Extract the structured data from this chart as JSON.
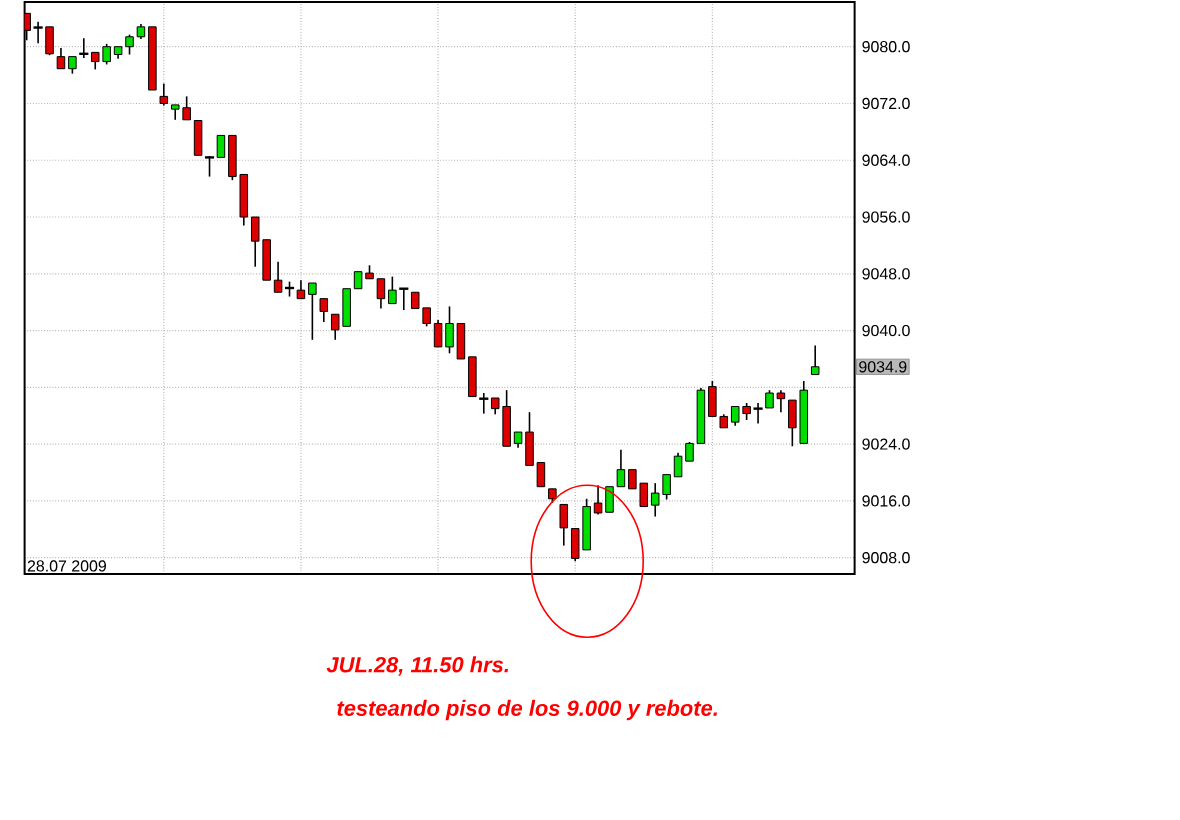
{
  "chart_data": {
    "type": "candlestick",
    "categories": [
      null,
      null,
      null,
      null,
      null,
      null,
      null,
      null,
      null,
      null,
      null,
      null,
      null,
      null,
      null,
      null,
      null,
      null,
      null,
      null,
      null,
      null,
      null,
      null,
      null,
      null,
      null,
      null,
      null,
      null,
      null,
      null,
      null,
      null,
      null,
      null,
      null,
      null,
      null,
      null,
      null,
      null,
      null,
      null,
      null,
      null,
      null,
      null,
      null,
      null,
      null,
      null,
      null,
      null,
      null,
      null,
      null,
      null,
      null,
      null,
      null,
      null,
      null,
      null,
      null,
      null,
      null,
      null,
      null,
      null
    ],
    "ohlc": [
      [
        9084.7,
        9084.7,
        9080.9,
        9082.3
      ],
      [
        9082.7,
        9083.5,
        9080.5,
        9082.7
      ],
      [
        9082.8,
        9082.8,
        9078.8,
        9079.0
      ],
      [
        9078.6,
        9079.8,
        9076.9,
        9076.9
      ],
      [
        9076.9,
        9078.6,
        9076.2,
        9078.6
      ],
      [
        9079.0,
        9081.2,
        9078.4,
        9079.0
      ],
      [
        9079.2,
        9079.2,
        9076.8,
        9077.9
      ],
      [
        9077.9,
        9080.4,
        9077.5,
        9080.0
      ],
      [
        9078.9,
        9080.0,
        9078.3,
        9080.0
      ],
      [
        9080.0,
        9081.7,
        9078.9,
        9081.4
      ],
      [
        9081.4,
        9083.2,
        9081.1,
        9082.8
      ],
      [
        9082.8,
        9082.8,
        9073.9,
        9073.9
      ],
      [
        9073.0,
        9074.8,
        9071.7,
        9072.0
      ],
      [
        9071.2,
        9071.8,
        9069.7,
        9071.8
      ],
      [
        9071.4,
        9073.0,
        9069.7,
        9069.7
      ],
      [
        9069.6,
        9069.6,
        9064.7,
        9064.7
      ],
      [
        9064.4,
        9064.6,
        9061.7,
        9064.4
      ],
      [
        9064.4,
        9067.5,
        9064.4,
        9067.5
      ],
      [
        9067.5,
        9067.5,
        9061.2,
        9061.7
      ],
      [
        9062.0,
        9062.0,
        9054.8,
        9056.0
      ],
      [
        9056.0,
        9056.0,
        9049.0,
        9052.6
      ],
      [
        9052.8,
        9052.8,
        9047.1,
        9047.1
      ],
      [
        9047.1,
        9049.7,
        9045.4,
        9045.4
      ],
      [
        9046.0,
        9046.9,
        9044.8,
        9046.0
      ],
      [
        9045.7,
        9047.1,
        9044.5,
        9044.5
      ],
      [
        9045.1,
        9046.7,
        9038.7,
        9046.7
      ],
      [
        9044.5,
        9044.5,
        9041.2,
        9042.7
      ],
      [
        9042.3,
        9042.3,
        9038.7,
        9040.1
      ],
      [
        9040.6,
        9045.9,
        9040.6,
        9045.9
      ],
      [
        9045.9,
        9048.3,
        9045.9,
        9048.3
      ],
      [
        9048.1,
        9049.2,
        9047.3,
        9047.3
      ],
      [
        9047.3,
        9047.3,
        9043.1,
        9044.5
      ],
      [
        9043.8,
        9047.6,
        9043.8,
        9045.7
      ],
      [
        9045.9,
        9045.9,
        9042.9,
        9045.9
      ],
      [
        9045.4,
        9045.4,
        9043.1,
        9043.1
      ],
      [
        9043.2,
        9043.2,
        9040.6,
        9041.0
      ],
      [
        9041.0,
        9041.5,
        9037.7,
        9037.7
      ],
      [
        9037.7,
        9043.4,
        9036.8,
        9041.0
      ],
      [
        9041.0,
        9041.0,
        9036.0,
        9036.0
      ],
      [
        9036.3,
        9036.3,
        9030.7,
        9030.7
      ],
      [
        9030.4,
        9031.2,
        9028.3,
        9030.4
      ],
      [
        9030.5,
        9030.5,
        9028.2,
        9029.0
      ],
      [
        9029.3,
        9031.6,
        9023.7,
        9023.7
      ],
      [
        9024.1,
        9025.7,
        9023.5,
        9025.7
      ],
      [
        9025.7,
        9028.5,
        9021.0,
        9021.0
      ],
      [
        9021.4,
        9021.4,
        9018.0,
        9018.0
      ],
      [
        9017.7,
        9017.7,
        9015.7,
        9016.3
      ],
      [
        9015.5,
        9015.5,
        9009.7,
        9012.2
      ],
      [
        9012.1,
        9012.1,
        9007.5,
        9007.9
      ],
      [
        9009.1,
        9016.3,
        9009.1,
        9015.2
      ],
      [
        9015.7,
        9018.2,
        9014.1,
        9014.3
      ],
      [
        9014.4,
        9018.0,
        9014.4,
        9018.0
      ],
      [
        9018.0,
        9023.2,
        9018.0,
        9020.4
      ],
      [
        9020.4,
        9020.4,
        9017.7,
        9017.7
      ],
      [
        9018.5,
        9018.5,
        9015.2,
        9015.2
      ],
      [
        9015.4,
        9018.5,
        9013.8,
        9017.1
      ],
      [
        9016.9,
        9019.7,
        9016.2,
        9019.7
      ],
      [
        9019.4,
        9022.8,
        9019.4,
        9022.3
      ],
      [
        9021.6,
        9024.3,
        9021.6,
        9024.1
      ],
      [
        9024.1,
        9031.9,
        9024.1,
        9031.6
      ],
      [
        9032.1,
        9032.9,
        9027.9,
        9027.9
      ],
      [
        9027.9,
        9028.2,
        9026.3,
        9026.3
      ],
      [
        9027.1,
        9029.3,
        9026.6,
        9029.3
      ],
      [
        9029.3,
        9029.8,
        9027.4,
        9028.3
      ],
      [
        9029.0,
        9029.8,
        9026.9,
        9029.0
      ],
      [
        9029.1,
        9031.6,
        9029.1,
        9031.2
      ],
      [
        9031.2,
        9031.6,
        9028.5,
        9030.4
      ],
      [
        9030.2,
        9030.2,
        9023.7,
        9026.3
      ],
      [
        9024.1,
        9032.9,
        9024.1,
        9031.6
      ],
      [
        9033.8,
        9037.9,
        9033.8,
        9034.9
      ]
    ],
    "colors": [
      "#dd0000",
      "#000000",
      "#dd0000",
      "#dd0000",
      "#00dd00",
      "#000000",
      "#dd0000",
      "#00dd00",
      "#00dd00",
      "#00dd00",
      "#00dd00",
      "#dd0000",
      "#dd0000",
      "#00dd00",
      "#dd0000",
      "#dd0000",
      "#000000",
      "#00dd00",
      "#dd0000",
      "#dd0000",
      "#dd0000",
      "#dd0000",
      "#dd0000",
      "#000000",
      "#dd0000",
      "#00dd00",
      "#dd0000",
      "#dd0000",
      "#00dd00",
      "#00dd00",
      "#dd0000",
      "#dd0000",
      "#00dd00",
      "#000000",
      "#dd0000",
      "#dd0000",
      "#dd0000",
      "#00dd00",
      "#dd0000",
      "#dd0000",
      "#000000",
      "#dd0000",
      "#dd0000",
      "#00dd00",
      "#dd0000",
      "#dd0000",
      "#dd0000",
      "#dd0000",
      "#dd0000",
      "#00dd00",
      "#dd0000",
      "#00dd00",
      "#00dd00",
      "#dd0000",
      "#dd0000",
      "#00dd00",
      "#00dd00",
      "#00dd00",
      "#00dd00",
      "#00dd00",
      "#dd0000",
      "#dd0000",
      "#00dd00",
      "#dd0000",
      "#000000",
      "#00dd00",
      "#dd0000",
      "#dd0000",
      "#00dd00",
      "#00dd00"
    ],
    "ylim": [
      9005.7,
      9086.3
    ],
    "yticks": [
      {
        "value": 9008,
        "label": "9008.0"
      },
      {
        "value": 9016,
        "label": "9016.0"
      },
      {
        "value": 9024,
        "label": "9024.0"
      },
      {
        "value": 9032,
        "label": null
      },
      {
        "value": 9040,
        "label": "9040.0"
      },
      {
        "value": 9048,
        "label": "9048.0"
      },
      {
        "value": 9056,
        "label": "9056.0"
      },
      {
        "value": 9064,
        "label": "9064.0"
      },
      {
        "value": 9072,
        "label": "9072.0"
      },
      {
        "value": 9080,
        "label": "9080.0"
      }
    ],
    "tick_labels": "y",
    "grid": true,
    "annotations": [
      "28.07 2009",
      "JUL.28,  11.50 hrs.",
      "testeando piso de los 9.000 y rebote.",
      "9034.9"
    ]
  }
}
